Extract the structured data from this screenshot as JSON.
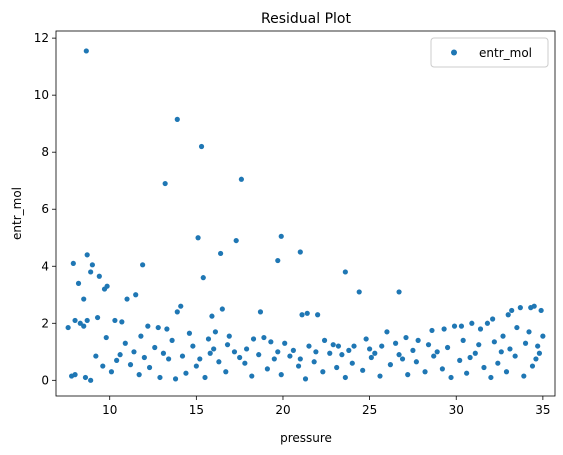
{
  "chart_data": {
    "type": "scatter",
    "title": "Residual Plot",
    "xlabel": "pressure",
    "ylabel": "entr_mol",
    "xlim": [
      6.9,
      35.7
    ],
    "ylim": [
      -0.55,
      12.25
    ],
    "xticks": [
      10,
      15,
      20,
      25,
      30,
      35
    ],
    "yticks": [
      0,
      2,
      4,
      6,
      8,
      10,
      12
    ],
    "grid": false,
    "legend_position": "top-right",
    "series": [
      {
        "name": "entr_mol",
        "color": "#1f77b4",
        "points": [
          [
            8.65,
            11.55
          ],
          [
            13.9,
            9.15
          ],
          [
            15.3,
            8.2
          ],
          [
            17.6,
            7.05
          ],
          [
            13.2,
            6.9
          ],
          [
            15.1,
            5.0
          ],
          [
            19.9,
            5.05
          ],
          [
            17.3,
            4.9
          ],
          [
            21.0,
            4.5
          ],
          [
            19.7,
            4.2
          ],
          [
            16.4,
            4.45
          ],
          [
            7.9,
            4.1
          ],
          [
            8.7,
            4.4
          ],
          [
            8.9,
            3.8
          ],
          [
            9.0,
            4.05
          ],
          [
            9.4,
            3.65
          ],
          [
            11.9,
            4.05
          ],
          [
            15.4,
            3.6
          ],
          [
            23.6,
            3.8
          ],
          [
            24.4,
            3.1
          ],
          [
            26.7,
            3.1
          ],
          [
            8.2,
            3.4
          ],
          [
            9.7,
            3.2
          ],
          [
            9.85,
            3.3
          ],
          [
            11.5,
            3.0
          ],
          [
            11.0,
            2.85
          ],
          [
            8.5,
            2.85
          ],
          [
            14.1,
            2.6
          ],
          [
            13.9,
            2.4
          ],
          [
            18.7,
            2.4
          ],
          [
            21.1,
            2.3
          ],
          [
            21.4,
            2.35
          ],
          [
            22.0,
            2.3
          ],
          [
            16.5,
            2.5
          ],
          [
            15.9,
            2.25
          ],
          [
            32.1,
            2.15
          ],
          [
            33.0,
            2.3
          ],
          [
            33.2,
            2.45
          ],
          [
            33.7,
            2.55
          ],
          [
            34.3,
            2.55
          ],
          [
            34.5,
            2.6
          ],
          [
            34.9,
            2.45
          ],
          [
            31.8,
            2.0
          ],
          [
            30.3,
            1.9
          ],
          [
            30.9,
            2.0
          ],
          [
            8.0,
            2.1
          ],
          [
            8.3,
            2.0
          ],
          [
            8.5,
            1.9
          ],
          [
            8.7,
            2.1
          ],
          [
            9.3,
            2.2
          ],
          [
            10.3,
            2.1
          ],
          [
            10.7,
            2.05
          ],
          [
            12.2,
            1.9
          ],
          [
            12.8,
            1.85
          ],
          [
            13.3,
            1.8
          ],
          [
            14.6,
            1.65
          ],
          [
            16.1,
            1.7
          ],
          [
            16.9,
            1.55
          ],
          [
            18.3,
            1.45
          ],
          [
            19.3,
            1.35
          ],
          [
            20.1,
            1.3
          ],
          [
            21.5,
            1.2
          ],
          [
            22.4,
            1.4
          ],
          [
            23.2,
            1.2
          ],
          [
            24.1,
            1.2
          ],
          [
            25.0,
            1.1
          ],
          [
            26.0,
            1.7
          ],
          [
            27.1,
            1.5
          ],
          [
            27.8,
            1.4
          ],
          [
            28.6,
            1.75
          ],
          [
            29.3,
            1.8
          ],
          [
            29.9,
            1.9
          ],
          [
            31.4,
            1.8
          ],
          [
            32.7,
            1.55
          ],
          [
            33.5,
            1.85
          ],
          [
            34.2,
            1.7
          ],
          [
            35.0,
            1.55
          ],
          [
            7.6,
            1.85
          ],
          [
            7.8,
            0.15
          ],
          [
            8.0,
            0.2
          ],
          [
            8.6,
            0.1
          ],
          [
            8.9,
            0.0
          ],
          [
            9.2,
            0.85
          ],
          [
            9.6,
            0.5
          ],
          [
            10.1,
            0.3
          ],
          [
            10.6,
            0.9
          ],
          [
            11.2,
            0.55
          ],
          [
            11.7,
            0.2
          ],
          [
            12.3,
            0.45
          ],
          [
            12.9,
            0.1
          ],
          [
            13.4,
            0.75
          ],
          [
            13.8,
            0.05
          ],
          [
            14.4,
            0.25
          ],
          [
            15.0,
            0.5
          ],
          [
            15.5,
            0.1
          ],
          [
            15.8,
            0.95
          ],
          [
            16.3,
            0.65
          ],
          [
            16.7,
            0.3
          ],
          [
            17.2,
            1.0
          ],
          [
            17.8,
            0.6
          ],
          [
            18.2,
            0.15
          ],
          [
            18.6,
            0.9
          ],
          [
            19.1,
            0.4
          ],
          [
            19.5,
            0.75
          ],
          [
            19.9,
            0.2
          ],
          [
            20.4,
            0.85
          ],
          [
            20.9,
            0.5
          ],
          [
            21.3,
            0.05
          ],
          [
            21.8,
            0.65
          ],
          [
            22.3,
            0.3
          ],
          [
            22.7,
            0.95
          ],
          [
            23.1,
            0.45
          ],
          [
            23.6,
            0.1
          ],
          [
            24.0,
            0.6
          ],
          [
            24.6,
            0.35
          ],
          [
            25.1,
            0.8
          ],
          [
            25.6,
            0.15
          ],
          [
            26.2,
            0.55
          ],
          [
            26.7,
            0.9
          ],
          [
            27.2,
            0.2
          ],
          [
            27.7,
            0.65
          ],
          [
            28.2,
            0.3
          ],
          [
            28.7,
            0.85
          ],
          [
            29.2,
            0.4
          ],
          [
            29.7,
            0.1
          ],
          [
            30.2,
            0.7
          ],
          [
            30.6,
            0.25
          ],
          [
            31.1,
            0.95
          ],
          [
            31.6,
            0.45
          ],
          [
            32.0,
            0.1
          ],
          [
            32.4,
            0.6
          ],
          [
            32.9,
            0.3
          ],
          [
            33.4,
            0.85
          ],
          [
            33.9,
            0.15
          ],
          [
            34.4,
            0.5
          ],
          [
            34.8,
            0.95
          ],
          [
            9.8,
            1.5
          ],
          [
            10.9,
            1.3
          ],
          [
            11.8,
            1.55
          ],
          [
            12.6,
            1.15
          ],
          [
            13.6,
            1.4
          ],
          [
            14.8,
            1.2
          ],
          [
            15.7,
            1.45
          ],
          [
            16.8,
            1.25
          ],
          [
            17.9,
            1.1
          ],
          [
            18.9,
            1.5
          ],
          [
            20.6,
            1.05
          ],
          [
            21.9,
            1.0
          ],
          [
            22.9,
            1.25
          ],
          [
            23.8,
            1.05
          ],
          [
            24.8,
            1.45
          ],
          [
            25.7,
            1.2
          ],
          [
            26.5,
            1.3
          ],
          [
            27.5,
            1.05
          ],
          [
            28.4,
            1.25
          ],
          [
            29.5,
            1.15
          ],
          [
            30.4,
            1.4
          ],
          [
            31.3,
            1.25
          ],
          [
            32.2,
            1.35
          ],
          [
            33.1,
            1.1
          ],
          [
            34.0,
            1.3
          ],
          [
            34.7,
            1.2
          ],
          [
            10.4,
            0.7
          ],
          [
            11.4,
            1.0
          ],
          [
            12.0,
            0.8
          ],
          [
            13.1,
            0.95
          ],
          [
            14.2,
            0.85
          ],
          [
            15.2,
            0.75
          ],
          [
            16.0,
            1.1
          ],
          [
            17.5,
            0.8
          ],
          [
            19.7,
            1.0
          ],
          [
            21.0,
            0.75
          ],
          [
            23.4,
            0.9
          ],
          [
            25.3,
            0.95
          ],
          [
            26.9,
            0.75
          ],
          [
            28.9,
            1.0
          ],
          [
            30.8,
            0.8
          ],
          [
            32.6,
            1.0
          ],
          [
            34.6,
            0.75
          ]
        ]
      }
    ]
  }
}
